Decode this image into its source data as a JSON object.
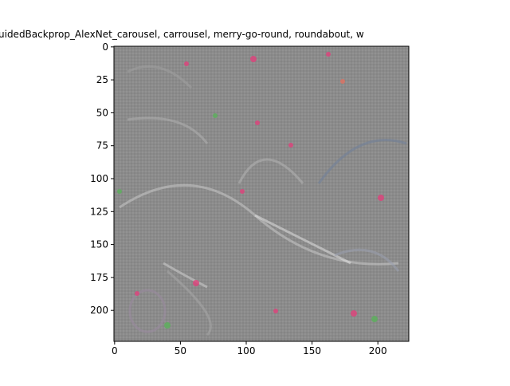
{
  "chart_data": {
    "type": "image",
    "title": "uidedBackprop_AlexNet_carousel, carrousel, merry-go-round, roundabout, w",
    "xlim": [
      -0.5,
      223.5
    ],
    "ylim": [
      223.5,
      -0.5
    ],
    "xticks": [
      0,
      50,
      100,
      150,
      200
    ],
    "yticks": [
      0,
      25,
      50,
      75,
      100,
      125,
      150,
      175,
      200
    ]
  }
}
